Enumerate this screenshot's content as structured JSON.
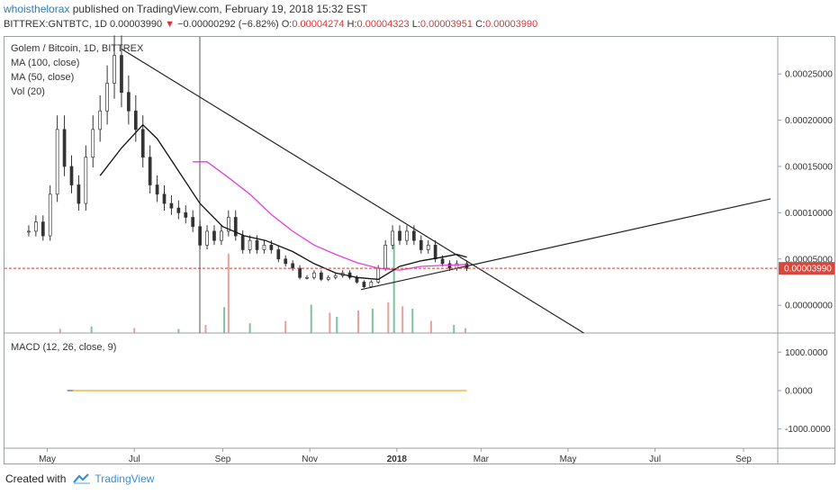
{
  "header": {
    "author": "whoisthelorax",
    "published": " published on TradingView.com, February 19, 2018 15:32 EST",
    "symbol": "BITTREX:GNTBTC, 1D",
    "last": "0.00003990",
    "change": "−0.00000292 (−6.82%)",
    "o_label": "O:",
    "o": "0.00004274",
    "h_label": "H:",
    "h": "0.00004323",
    "l_label": "L:",
    "l": "0.00003951",
    "c_label": "C:",
    "c": "0.00003990"
  },
  "legend": {
    "title": "Golem / Bitcoin, 1D, BITTREX",
    "ma100": "MA (100, close)",
    "ma50": "MA (50, close)",
    "vol": "Vol (20)",
    "macd": "MACD (12, 26, close, 9)"
  },
  "footer": {
    "created": "Created with",
    "brand": "TradingView"
  },
  "colors": {
    "ma100": "#e23fd8",
    "ma50": "#111111",
    "up": "#5fb38a",
    "down": "#e08a80",
    "price_line": "#e0392b",
    "macd_signal": "#f5a623",
    "macd": "#2a7ab8"
  },
  "chart_data": [
    {
      "type": "candlestick",
      "title": "Golem / Bitcoin, 1D, BITTREX",
      "x_ticks": [
        "May",
        "Jul",
        "Sep",
        "Nov",
        "2018",
        "Mar",
        "May",
        "Jul",
        "Sep"
      ],
      "x_tick_dates": [
        "2017-05-01",
        "2017-07-01",
        "2017-09-01",
        "2017-11-01",
        "2018-01-01",
        "2018-03-01",
        "2018-05-01",
        "2018-07-01",
        "2018-09-01"
      ],
      "y_ticks": [
        "0.00000000",
        "0.00005000",
        "0.00010000",
        "0.00015000",
        "0.00020000",
        "0.00025000"
      ],
      "ylim": [
        -3e-05,
        0.00029
      ],
      "current_price": 3.99e-05,
      "current_price_label": "0.00003990",
      "close_series": [
        [
          "2017-04-18",
          8e-05
        ],
        [
          "2017-04-23",
          9e-05
        ],
        [
          "2017-04-28",
          7.5e-05
        ],
        [
          "2017-05-03",
          0.00012
        ],
        [
          "2017-05-08",
          0.00019
        ],
        [
          "2017-05-13",
          0.00015
        ],
        [
          "2017-05-18",
          0.00013
        ],
        [
          "2017-05-23",
          0.00011
        ],
        [
          "2017-05-28",
          0.00016
        ],
        [
          "2017-06-02",
          0.00019
        ],
        [
          "2017-06-07",
          0.00021
        ],
        [
          "2017-06-12",
          0.00024
        ],
        [
          "2017-06-17",
          0.00027
        ],
        [
          "2017-06-22",
          0.00023
        ],
        [
          "2017-06-27",
          0.00021
        ],
        [
          "2017-07-02",
          0.00019
        ],
        [
          "2017-07-07",
          0.00016
        ],
        [
          "2017-07-12",
          0.00013
        ],
        [
          "2017-07-17",
          0.00012
        ],
        [
          "2017-07-22",
          0.00011
        ],
        [
          "2017-07-27",
          0.000105
        ],
        [
          "2017-08-01",
          0.0001
        ],
        [
          "2017-08-06",
          9.5e-05
        ],
        [
          "2017-08-11",
          8.5e-05
        ],
        [
          "2017-08-16",
          6.5e-05
        ],
        [
          "2017-08-21",
          8e-05
        ],
        [
          "2017-08-26",
          7e-05
        ],
        [
          "2017-08-31",
          8e-05
        ],
        [
          "2017-09-05",
          9.5e-05
        ],
        [
          "2017-09-10",
          7.5e-05
        ],
        [
          "2017-09-15",
          6e-05
        ],
        [
          "2017-09-20",
          7e-05
        ],
        [
          "2017-09-25",
          6e-05
        ],
        [
          "2017-09-30",
          6.5e-05
        ],
        [
          "2017-10-05",
          6e-05
        ],
        [
          "2017-10-10",
          5e-05
        ],
        [
          "2017-10-15",
          4.5e-05
        ],
        [
          "2017-10-20",
          4e-05
        ],
        [
          "2017-10-25",
          3e-05
        ],
        [
          "2017-10-30",
          3e-05
        ],
        [
          "2017-11-04",
          3.5e-05
        ],
        [
          "2017-11-09",
          2.8e-05
        ],
        [
          "2017-11-14",
          3e-05
        ],
        [
          "2017-11-19",
          3.2e-05
        ],
        [
          "2017-11-24",
          3.5e-05
        ],
        [
          "2017-11-29",
          3e-05
        ],
        [
          "2017-12-04",
          2.5e-05
        ],
        [
          "2017-12-09",
          2e-05
        ],
        [
          "2017-12-14",
          2.5e-05
        ],
        [
          "2017-12-19",
          4e-05
        ],
        [
          "2017-12-24",
          6.5e-05
        ],
        [
          "2017-12-29",
          8e-05
        ],
        [
          "2018-01-03",
          7e-05
        ],
        [
          "2018-01-08",
          8e-05
        ],
        [
          "2018-01-13",
          7e-05
        ],
        [
          "2018-01-18",
          6e-05
        ],
        [
          "2018-01-23",
          6.5e-05
        ],
        [
          "2018-01-28",
          5e-05
        ],
        [
          "2018-02-02",
          4.5e-05
        ],
        [
          "2018-02-07",
          4e-05
        ],
        [
          "2018-02-12",
          4.5e-05
        ],
        [
          "2018-02-19",
          3.99e-05
        ]
      ],
      "ma50_series": [
        [
          "2017-06-07",
          0.00014
        ],
        [
          "2017-06-22",
          0.00017
        ],
        [
          "2017-07-07",
          0.000195
        ],
        [
          "2017-07-17",
          0.00018
        ],
        [
          "2017-08-01",
          0.000145
        ],
        [
          "2017-08-16",
          0.00011
        ],
        [
          "2017-09-01",
          8.5e-05
        ],
        [
          "2017-09-16",
          7.5e-05
        ],
        [
          "2017-10-01",
          7e-05
        ],
        [
          "2017-10-20",
          5.8e-05
        ],
        [
          "2017-11-04",
          4.5e-05
        ],
        [
          "2017-11-19",
          3.5e-05
        ],
        [
          "2017-12-04",
          3e-05
        ],
        [
          "2017-12-19",
          2.8e-05
        ],
        [
          "2018-01-03",
          4.2e-05
        ],
        [
          "2018-01-18",
          4.8e-05
        ],
        [
          "2018-02-02",
          5.2e-05
        ],
        [
          "2018-02-12",
          5.5e-05
        ],
        [
          "2018-02-19",
          5.2e-05
        ]
      ],
      "ma100_series": [
        [
          "2017-08-11",
          0.000155
        ],
        [
          "2017-08-21",
          0.000155
        ],
        [
          "2017-09-05",
          0.000138
        ],
        [
          "2017-09-20",
          0.00012
        ],
        [
          "2017-10-05",
          9.8e-05
        ],
        [
          "2017-10-20",
          8e-05
        ],
        [
          "2017-11-04",
          6.5e-05
        ],
        [
          "2017-11-19",
          5.5e-05
        ],
        [
          "2017-12-04",
          4.6e-05
        ],
        [
          "2017-12-19",
          4e-05
        ],
        [
          "2018-01-03",
          3.8e-05
        ],
        [
          "2018-01-18",
          4.2e-05
        ],
        [
          "2018-02-02",
          4.3e-05
        ],
        [
          "2018-02-19",
          4.4e-05
        ]
      ],
      "trendlines": [
        {
          "name": "downtrend",
          "from": [
            "2017-06-22",
            0.000277
          ],
          "to": [
            "2018-05-12",
            -3e-05
          ]
        },
        {
          "name": "uptrend",
          "from": [
            "2017-12-07",
            1.7e-05
          ],
          "to": [
            "2018-09-20",
            0.000115
          ]
        }
      ],
      "volume": [
        [
          "2017-05-10",
          0.05
        ],
        [
          "2017-06-01",
          0.08
        ],
        [
          "2017-07-01",
          0.06
        ],
        [
          "2017-08-01",
          0.05
        ],
        [
          "2017-08-20",
          0.1
        ],
        [
          "2017-09-02",
          0.32
        ],
        [
          "2017-09-05",
          0.98
        ],
        [
          "2017-09-20",
          0.12
        ],
        [
          "2017-10-15",
          0.15
        ],
        [
          "2017-11-02",
          0.35
        ],
        [
          "2017-11-15",
          0.25
        ],
        [
          "2017-11-20",
          0.2
        ],
        [
          "2017-12-05",
          0.28
        ],
        [
          "2017-12-15",
          0.3
        ],
        [
          "2017-12-26",
          0.38
        ],
        [
          "2017-12-30",
          1.1
        ],
        [
          "2018-01-05",
          0.33
        ],
        [
          "2018-01-12",
          0.3
        ],
        [
          "2018-01-25",
          0.15
        ],
        [
          "2018-02-10",
          0.1
        ],
        [
          "2018-02-18",
          0.06
        ]
      ]
    },
    {
      "type": "line",
      "title": "MACD (12, 26, close, 9)",
      "y_ticks": [
        "-1000.0000",
        "0.0000",
        "1000.0000"
      ],
      "ylim": [
        -1500,
        1500
      ],
      "series": [
        {
          "name": "MACD",
          "from": "2017-05-15",
          "to": "2018-02-19",
          "value": 0
        }
      ]
    }
  ]
}
